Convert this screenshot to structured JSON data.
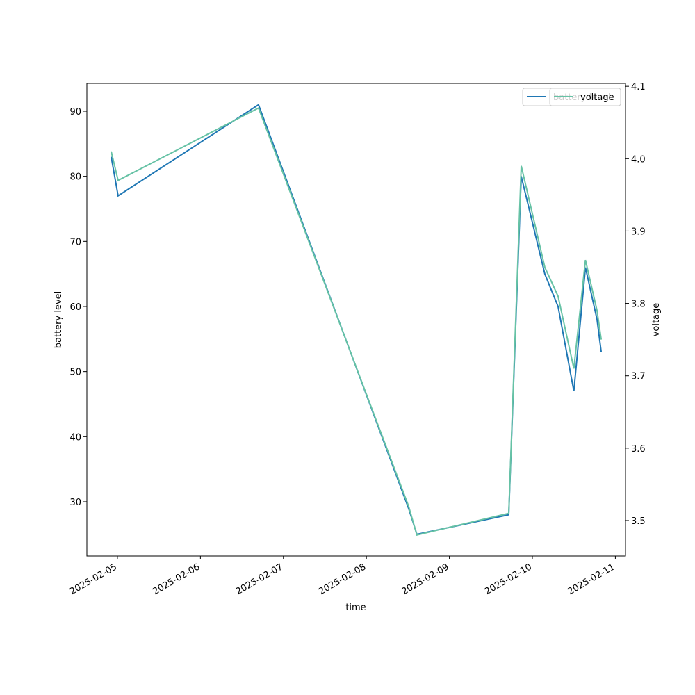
{
  "chart_data": {
    "type": "line",
    "x_label": "time",
    "y_label": "battery level",
    "y2_label": "voltage",
    "x": [
      "2025-02-04T22:12",
      "2025-02-05T00:12",
      "2025-02-06T16:48",
      "2025-02-08T12:12",
      "2025-02-08T14:36",
      "2025-02-09T17:10",
      "2025-02-09T20:47",
      "2025-02-10T03:36",
      "2025-02-10T07:26",
      "2025-02-10T12:00",
      "2025-02-10T15:21",
      "2025-02-10T18:42",
      "2025-02-10T19:55"
    ],
    "series": [
      {
        "name": "battery level",
        "color": "#1f77b4",
        "values": [
          83,
          77,
          91,
          29,
          25,
          28,
          80,
          65,
          60,
          47,
          66,
          58,
          53
        ]
      },
      {
        "name": "voltage",
        "color": "#66c2a5",
        "axis": "y2",
        "values": [
          4.01,
          3.97,
          4.07,
          3.52,
          3.48,
          3.51,
          3.99,
          3.85,
          3.81,
          3.71,
          3.86,
          3.79,
          3.75
        ]
      }
    ],
    "xlim": [
      "2025-02-04T15:10",
      "2025-02-11T02:56"
    ],
    "xticks": [
      "2025-02-05",
      "2025-02-06",
      "2025-02-07",
      "2025-02-08",
      "2025-02-09",
      "2025-02-10",
      "2025-02-11"
    ],
    "ylim": [
      21.67,
      94.27
    ],
    "yticks": [
      30,
      40,
      50,
      60,
      70,
      80,
      90
    ],
    "y2lim": [
      3.451,
      4.104
    ],
    "y2ticks": [
      3.5,
      3.6,
      3.7,
      3.8,
      3.9,
      {
        "value": 4,
        "label": "4.0"
      },
      4.1
    ],
    "legend": "upper right",
    "grid": false
  }
}
